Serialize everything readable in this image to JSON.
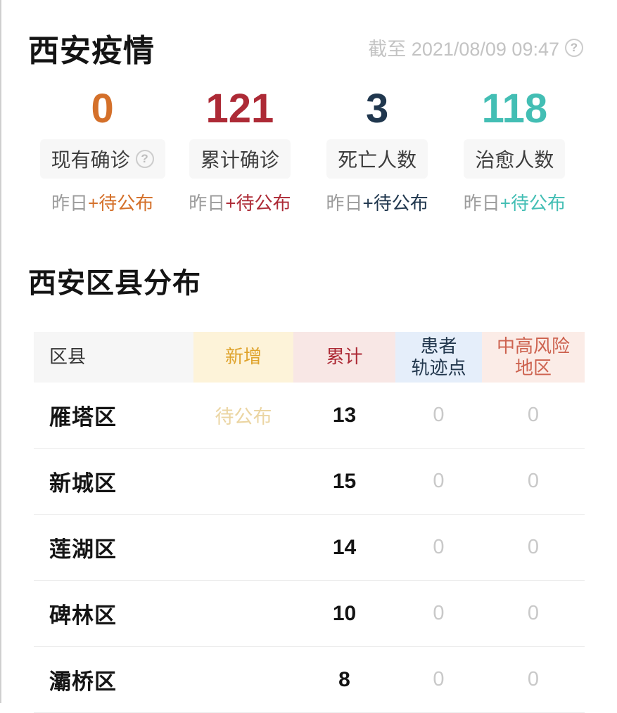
{
  "header": {
    "title": "西安疫情",
    "timestamp": "截至 2021/08/09 09:47",
    "help_icon_glyph": "?"
  },
  "stats": [
    {
      "value": "0",
      "label": "现有确诊",
      "has_help": true,
      "yesterday_label": "昨日",
      "yesterday_value": "+待公布",
      "color": "#d4702a"
    },
    {
      "value": "121",
      "label": "累计确诊",
      "has_help": false,
      "yesterday_label": "昨日",
      "yesterday_value": "+待公布",
      "color": "#ad2a36"
    },
    {
      "value": "3",
      "label": "死亡人数",
      "has_help": false,
      "yesterday_label": "昨日",
      "yesterday_value": "+待公布",
      "color": "#20374e"
    },
    {
      "value": "118",
      "label": "治愈人数",
      "has_help": false,
      "yesterday_label": "昨日",
      "yesterday_value": "+待公布",
      "color": "#43beb4"
    }
  ],
  "section": {
    "title": "西安区县分布"
  },
  "table": {
    "columns": [
      {
        "key": "district",
        "label": "区县",
        "bg": "#f6f6f6",
        "fg": "#333333"
      },
      {
        "key": "new",
        "label": "新增",
        "bg": "#fdf3d9",
        "fg": "#dfa32c"
      },
      {
        "key": "total",
        "label": "累计",
        "bg": "#f8e7e5",
        "fg": "#ad2a36"
      },
      {
        "key": "trajectory",
        "label": "患者\n轨迹点",
        "bg": "#e5eefa",
        "fg": "#22374d"
      },
      {
        "key": "risk",
        "label": "中高风险\n地区",
        "bg": "#fbece7",
        "fg": "#cd624f"
      }
    ],
    "rows": [
      {
        "district": "雁塔区",
        "new": "待公布",
        "total": "13",
        "trajectory": "0",
        "risk": "0"
      },
      {
        "district": "新城区",
        "new": "",
        "total": "15",
        "trajectory": "0",
        "risk": "0"
      },
      {
        "district": "莲湖区",
        "new": "",
        "total": "14",
        "trajectory": "0",
        "risk": "0"
      },
      {
        "district": "碑林区",
        "new": "",
        "total": "10",
        "trajectory": "0",
        "risk": "0"
      },
      {
        "district": "灞桥区",
        "new": "",
        "total": "8",
        "trajectory": "0",
        "risk": "0"
      }
    ]
  }
}
